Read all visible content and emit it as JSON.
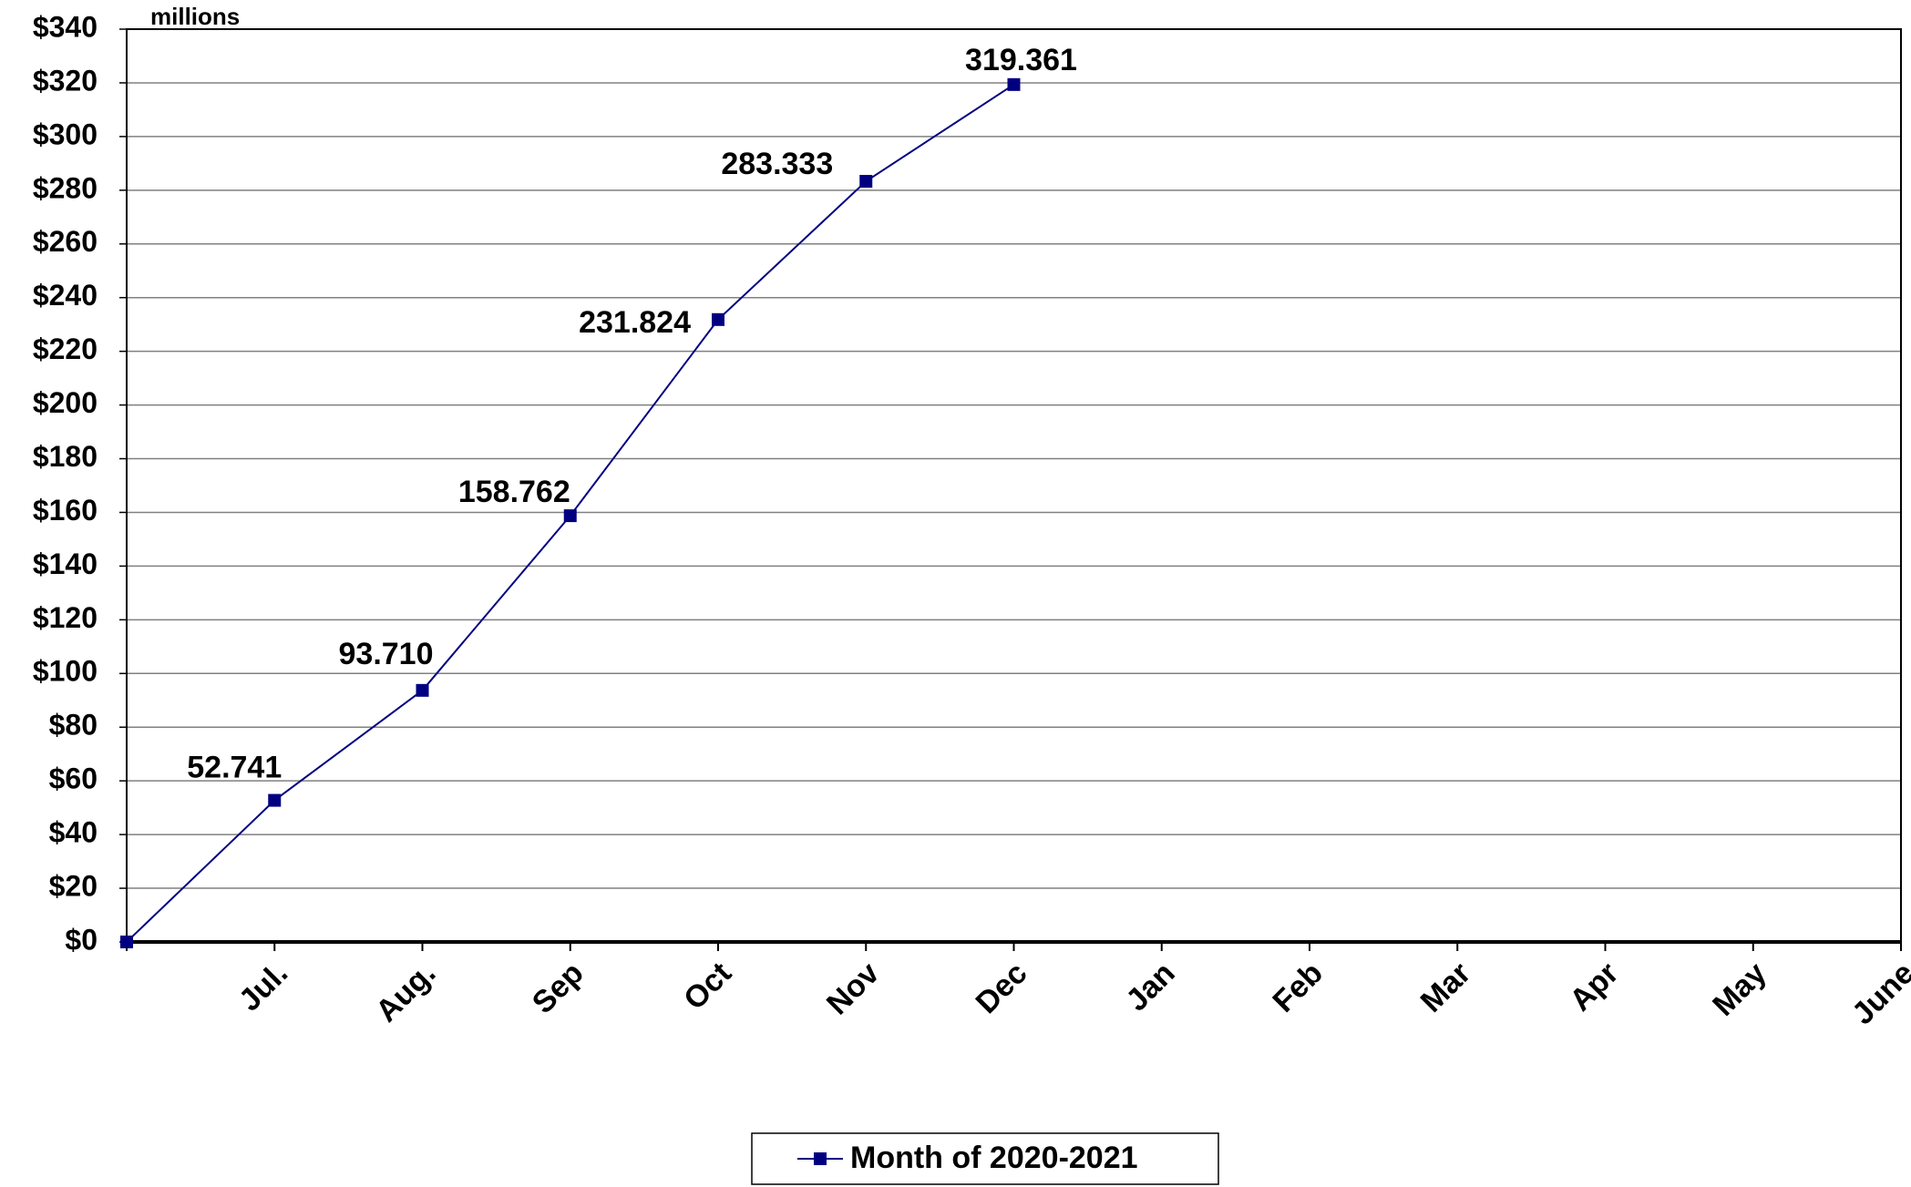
{
  "chart_data": {
    "type": "line",
    "annotation": "millions",
    "categories": [
      null,
      "Jul.",
      "Aug.",
      "Sep",
      "Oct",
      "Nov",
      "Dec",
      "Jan",
      "Feb",
      "Mar",
      "Apr",
      "May",
      "June"
    ],
    "series": [
      {
        "name": "Month of 2020-2021",
        "color": "#000080",
        "values": [
          0,
          52.741,
          93.71,
          158.762,
          231.824,
          283.333,
          319.361,
          null,
          null,
          null,
          null,
          null,
          null
        ],
        "value_labels": [
          null,
          "52.741",
          "93.710",
          "158.762",
          "231.824",
          "283.333",
          "319.361",
          null,
          null,
          null,
          null,
          null,
          null
        ]
      }
    ],
    "ylim": [
      0,
      340
    ],
    "yticks": [
      {
        "value": 0,
        "label": "$0"
      },
      {
        "value": 20,
        "label": "$20"
      },
      {
        "value": 40,
        "label": "$40"
      },
      {
        "value": 60,
        "label": "$60"
      },
      {
        "value": 80,
        "label": "$80"
      },
      {
        "value": 100,
        "label": "$100"
      },
      {
        "value": 120,
        "label": "$120"
      },
      {
        "value": 140,
        "label": "$140"
      },
      {
        "value": 160,
        "label": "$160"
      },
      {
        "value": 180,
        "label": "$180"
      },
      {
        "value": 200,
        "label": "$200"
      },
      {
        "value": 220,
        "label": "$220"
      },
      {
        "value": 240,
        "label": "$240"
      },
      {
        "value": 260,
        "label": "$260"
      },
      {
        "value": 280,
        "label": "$280"
      },
      {
        "value": 300,
        "label": "$300"
      },
      {
        "value": 320,
        "label": "$320"
      },
      {
        "value": 340,
        "label": "$340"
      }
    ],
    "grid": true
  }
}
